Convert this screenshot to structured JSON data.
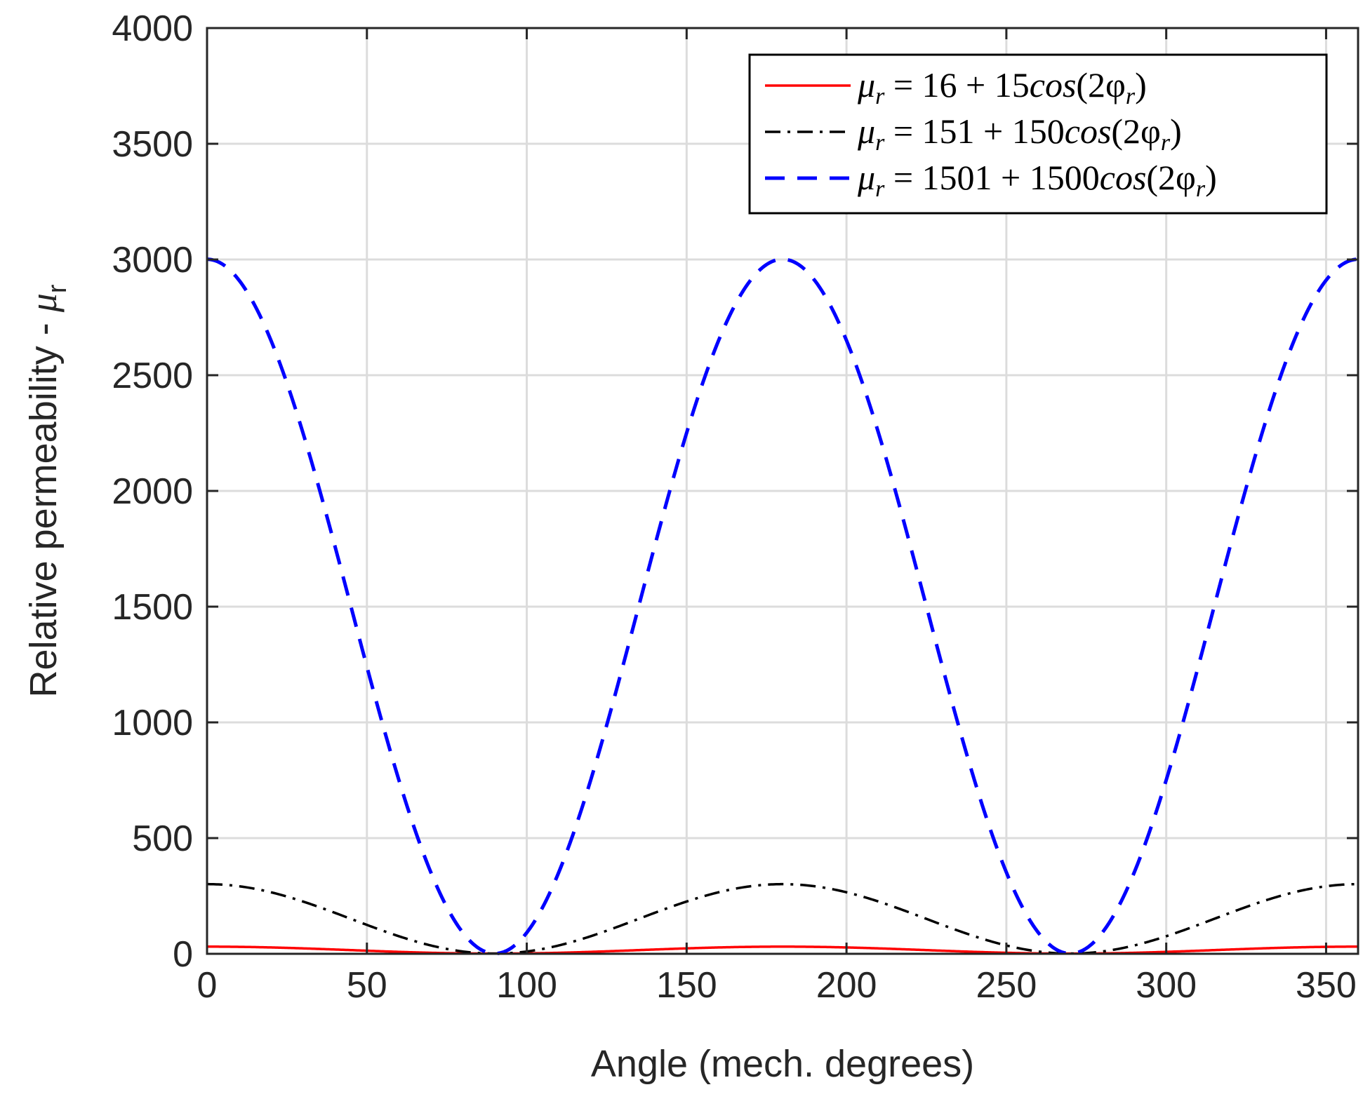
{
  "chart_data": {
    "type": "line",
    "title": "",
    "xlabel": "Angle (mech. degrees)",
    "ylabel": "Relative permeability - ",
    "ylabel_symbol": "μ",
    "ylabel_subscript": "r",
    "xlim": [
      0,
      360
    ],
    "ylim": [
      0,
      4000
    ],
    "xticks": [
      0,
      50,
      100,
      150,
      200,
      250,
      300,
      350
    ],
    "yticks": [
      0,
      500,
      1000,
      1500,
      2000,
      2500,
      3000,
      3500,
      4000
    ],
    "grid": true,
    "legend_position": "top-right",
    "x_step": 5,
    "series": [
      {
        "name": "μr = 16 + 15cos(2φr)",
        "legend_lhs": "μ",
        "legend_lhs_sub": "r",
        "legend_eq": " = 16 + 15",
        "legend_fn": "cos",
        "legend_arg": "(2φ",
        "legend_arg_sub": "r",
        "legend_close": ")",
        "a": 16,
        "b": 15,
        "color": "#ff0000",
        "style": "solid"
      },
      {
        "name": "μr = 151 + 150cos(2φr)",
        "legend_lhs": "μ",
        "legend_lhs_sub": "r",
        "legend_eq": " = 151 + 150",
        "legend_fn": "cos",
        "legend_arg": "(2φ",
        "legend_arg_sub": "r",
        "legend_close": ")",
        "a": 151,
        "b": 150,
        "color": "#000000",
        "style": "dashdot"
      },
      {
        "name": "μr = 1501 + 1500cos(2φr)",
        "legend_lhs": "μ",
        "legend_lhs_sub": "r",
        "legend_eq": " = 1501 + 1500",
        "legend_fn": "cos",
        "legend_arg": "(2φ",
        "legend_arg_sub": "r",
        "legend_close": ")",
        "a": 1501,
        "b": 1500,
        "color": "#0000ff",
        "style": "dashed"
      }
    ]
  }
}
